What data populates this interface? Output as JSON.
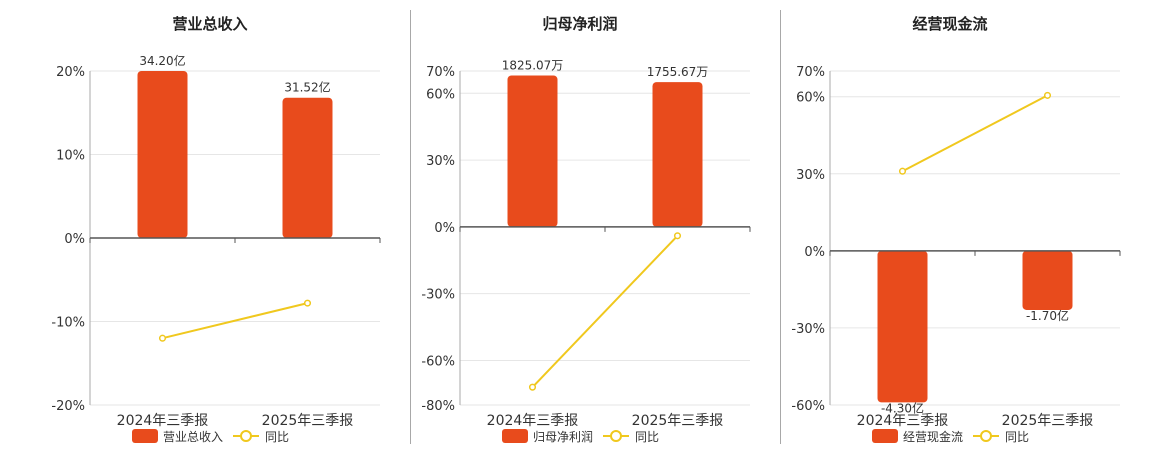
{
  "colors": {
    "bar": "#e84b1c",
    "line": "#f0c81e",
    "grid": "#e6e6e6",
    "axis": "#555555",
    "text": "#333333"
  },
  "legend_icons": {
    "bar": "rounded-rect-icon",
    "line": "line-with-circle-icon"
  },
  "chart_data": [
    {
      "type": "bar",
      "title": "营业总收入",
      "categories": [
        "2024年三季报",
        "2025年三季报"
      ],
      "series": [
        {
          "name": "营业总收入",
          "type": "bar",
          "values": [
            20.0,
            16.8
          ],
          "labels": [
            "34.20亿",
            "31.52亿"
          ]
        },
        {
          "name": "同比",
          "type": "line",
          "values": [
            -12.0,
            -7.8
          ]
        }
      ],
      "ylim": [
        -20,
        20
      ],
      "yticks": [
        20,
        10,
        0,
        -10,
        -20
      ],
      "ytick_labels": [
        "20%",
        "10%",
        "0%",
        "-10%",
        "-20%"
      ],
      "grid": true,
      "legend_position": "bottom"
    },
    {
      "type": "bar",
      "title": "归母净利润",
      "categories": [
        "2024年三季报",
        "2025年三季报"
      ],
      "series": [
        {
          "name": "归母净利润",
          "type": "bar",
          "values": [
            68.0,
            65.0
          ],
          "labels": [
            "1825.07万",
            "1755.67万"
          ]
        },
        {
          "name": "同比",
          "type": "line",
          "values": [
            -72.0,
            -4.0
          ]
        }
      ],
      "ylim": [
        -80,
        70
      ],
      "yticks": [
        70,
        60,
        30,
        0,
        -30,
        -60,
        -80
      ],
      "ytick_labels": [
        "70%",
        "60%",
        "30%",
        "0%",
        "-30%",
        "-60%",
        "-80%"
      ],
      "grid": true,
      "legend_position": "bottom"
    },
    {
      "type": "bar",
      "title": "经营现金流",
      "categories": [
        "2024年三季报",
        "2025年三季报"
      ],
      "series": [
        {
          "name": "经营现金流",
          "type": "bar",
          "values": [
            -59.0,
            -23.0
          ],
          "labels": [
            "-4.30亿",
            "-1.70亿"
          ]
        },
        {
          "name": "同比",
          "type": "line",
          "values": [
            31.0,
            60.5
          ]
        }
      ],
      "ylim": [
        -60,
        70
      ],
      "yticks": [
        70,
        60,
        30,
        0,
        -30,
        -60
      ],
      "ytick_labels": [
        "70%",
        "60%",
        "30%",
        "0%",
        "-30%",
        "-60%"
      ],
      "grid": true,
      "legend_position": "bottom"
    }
  ]
}
